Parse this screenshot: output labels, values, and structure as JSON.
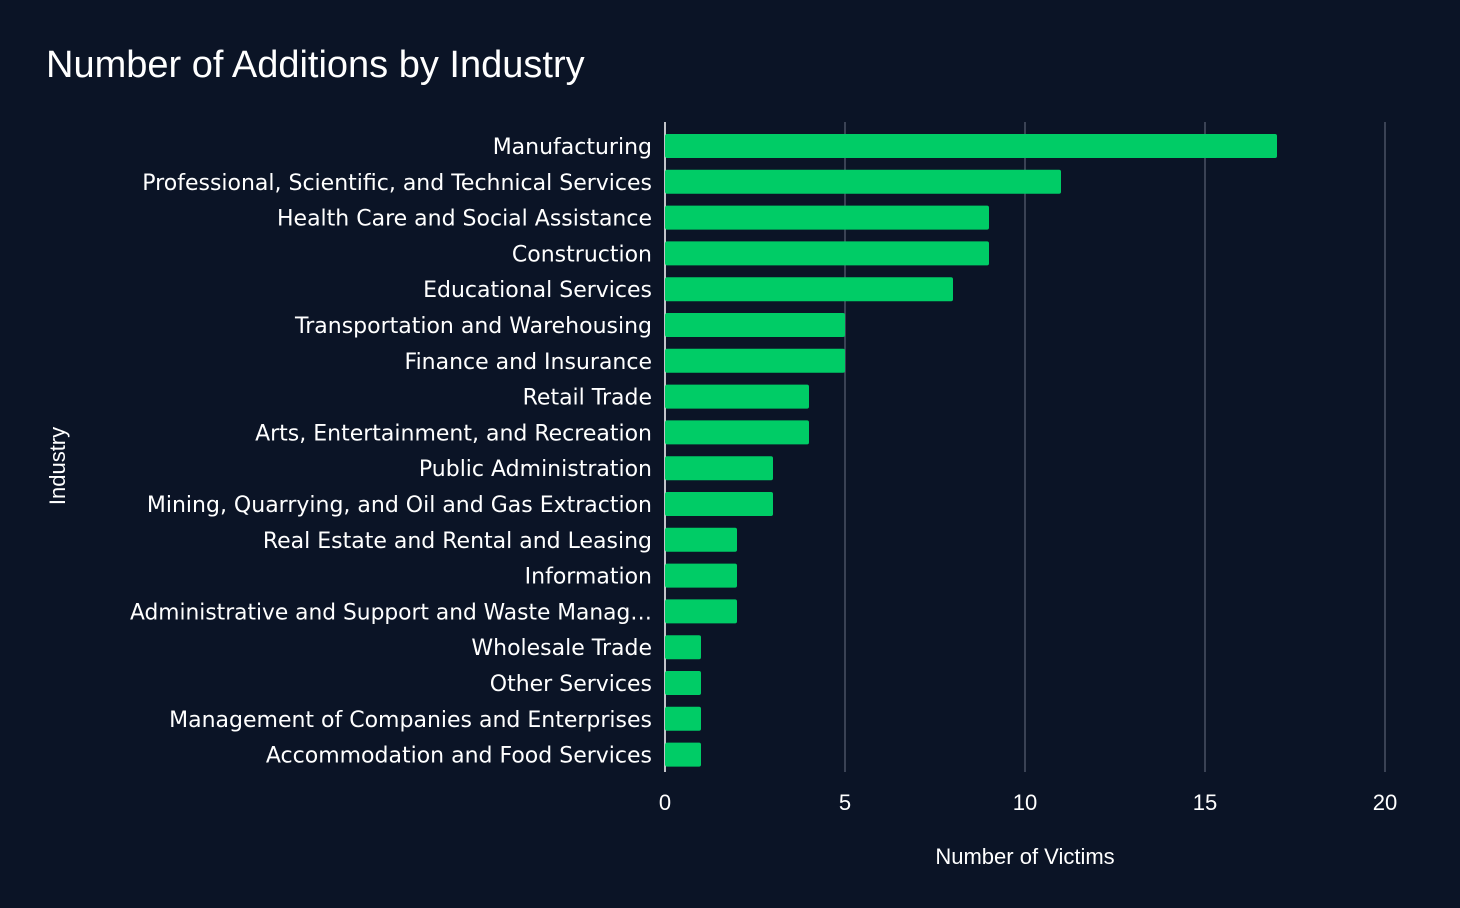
{
  "chart_data": {
    "type": "bar",
    "orientation": "horizontal",
    "title": "Number of Additions by Industry",
    "xlabel": "Number of Victims",
    "ylabel": "Industry",
    "xlim": [
      0,
      20
    ],
    "xticks": [
      0,
      5,
      10,
      15,
      20
    ],
    "grid": true,
    "bar_color": "#00cc66",
    "background_color": "#0b1426",
    "categories": [
      "Manufacturing",
      "Professional, Scientific, and Technical Services",
      "Health Care and Social Assistance",
      "Construction",
      "Educational Services",
      "Transportation and Warehousing",
      "Finance and Insurance",
      "Retail Trade",
      "Arts, Entertainment, and Recreation",
      "Public Administration",
      "Mining, Quarrying, and Oil and Gas Extraction",
      "Real Estate and Rental and Leasing",
      "Information",
      "Administrative and Support and Waste Manag…",
      "Wholesale Trade",
      "Other Services",
      "Management of Companies and Enterprises",
      "Accommodation and Food Services"
    ],
    "values": [
      17,
      11,
      9,
      9,
      8,
      5,
      5,
      4,
      4,
      3,
      3,
      2,
      2,
      2,
      1,
      1,
      1,
      1
    ]
  }
}
